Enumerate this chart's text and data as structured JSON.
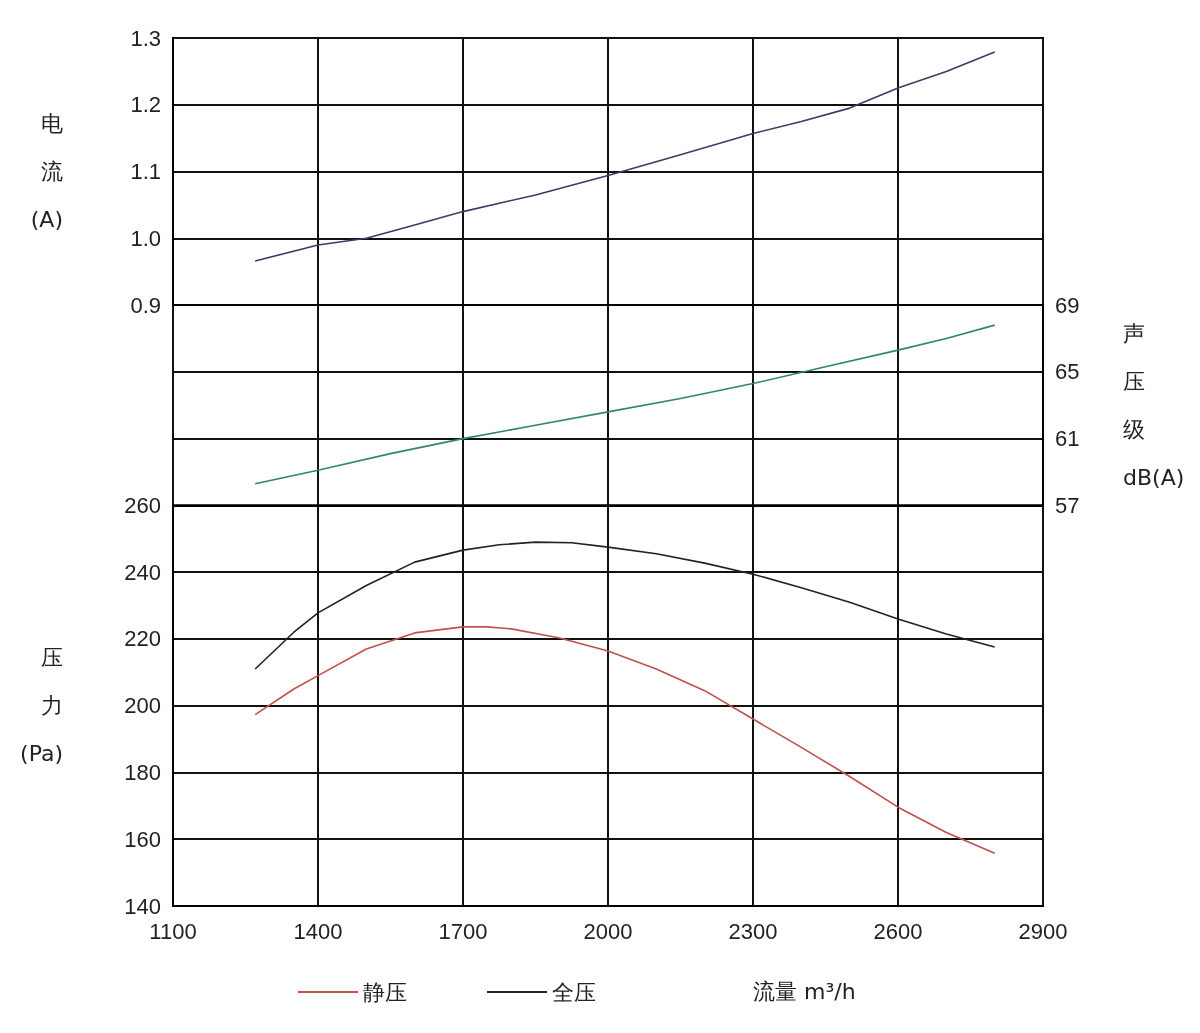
{
  "chart_data": [
    {
      "type": "line",
      "ylabel": "电流(A)",
      "xlim": [
        1100,
        2900
      ],
      "xticks": [
        1100,
        1400,
        1700,
        2000,
        2300,
        2600,
        2900
      ],
      "ylim": [
        0.9,
        1.3
      ],
      "yticks": [
        0.9,
        {
          "value": 1,
          "label": "1.0"
        },
        1.1,
        1.2,
        1.3
      ],
      "grid": true,
      "tick_labels": "y",
      "series": [
        {
          "color": "#3b3b63",
          "x": [
            1270,
            1400,
            1500,
            1600,
            1700,
            1850,
            2000,
            2150,
            2300,
            2400,
            2500,
            2600,
            2700,
            2800
          ],
          "values": [
            0.966,
            0.99,
            1.0,
            1.02,
            1.04,
            1.065,
            1.094,
            1.125,
            1.157,
            1.175,
            1.195,
            1.225,
            1.25,
            1.279
          ]
        }
      ]
    },
    {
      "type": "line",
      "y2label": "声压级dB(A)",
      "xlim": [
        1100,
        2900
      ],
      "xticks": [
        1100,
        1400,
        1700,
        2000,
        2300,
        2600,
        2900
      ],
      "y2lim": [
        57,
        69
      ],
      "y2ticks": [
        57,
        61,
        65,
        69
      ],
      "grid": true,
      "tick_labels": "y",
      "series": [
        {
          "color": "#2e8a5e",
          "axis": "y2",
          "x": [
            1270,
            1400,
            1550,
            1700,
            1850,
            2000,
            2150,
            2300,
            2450,
            2600,
            2700,
            2800
          ],
          "values": [
            58.3,
            59.1,
            60.1,
            61,
            61.8,
            62.6,
            63.4,
            64.3,
            65.3,
            66.3,
            67,
            67.8
          ]
        }
      ]
    },
    {
      "type": "line",
      "ylabel": "压力(Pa)",
      "xlabel": "流量 m³/h",
      "xlim": [
        1100,
        2900
      ],
      "xticks": [
        1100,
        1400,
        1700,
        2000,
        2300,
        2600,
        2900
      ],
      "ylim": [
        140,
        260
      ],
      "yticks": [
        140,
        160,
        180,
        200,
        220,
        240,
        260
      ],
      "grid": true,
      "legend": "bottom",
      "series": [
        {
          "name": "静压",
          "color": "#c0504d",
          "x": [
            1270,
            1350,
            1400,
            1500,
            1600,
            1700,
            1750,
            1800,
            1900,
            2000,
            2100,
            2200,
            2300,
            2400,
            2500,
            2600,
            2700,
            2800
          ],
          "values": [
            197.3,
            205,
            209,
            217,
            221.8,
            223.6,
            223.6,
            223,
            220.3,
            216.4,
            211,
            204.5,
            196,
            187.5,
            178.8,
            169.6,
            162,
            155.8
          ]
        },
        {
          "name": "全压",
          "color": "#222222",
          "x": [
            1270,
            1350,
            1400,
            1500,
            1600,
            1700,
            1775,
            1850,
            1925,
            2000,
            2100,
            2200,
            2300,
            2400,
            2500,
            2600,
            2700,
            2800
          ],
          "values": [
            211,
            222,
            227.8,
            236,
            243,
            246.6,
            248.2,
            249,
            248.8,
            247.5,
            245.5,
            242.7,
            239.4,
            235.3,
            231,
            226,
            221.5,
            217.6
          ]
        }
      ]
    }
  ]
}
